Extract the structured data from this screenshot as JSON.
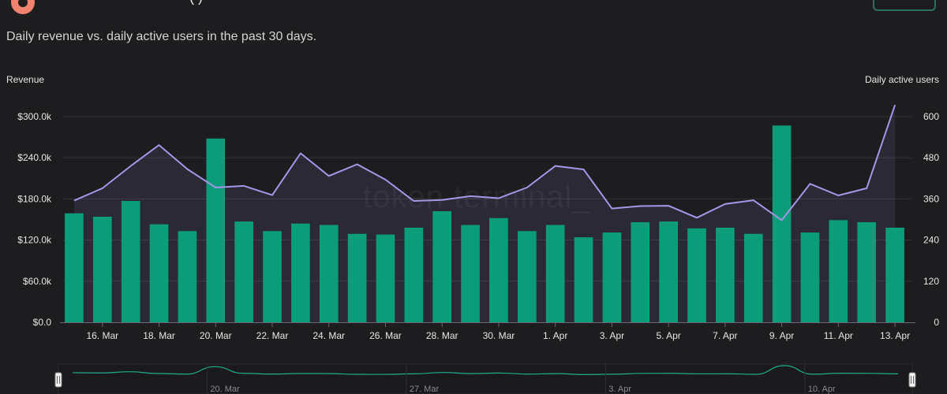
{
  "header": {
    "title_fragment": "(     )"
  },
  "subtitle": "Daily revenue vs. daily active users in the past 30 days.",
  "watermark": "token terminal_",
  "colors": {
    "bar": "#0b9c7a",
    "line": "#a796e8",
    "area": "rgba(150,130,220,0.12)",
    "background": "#1d1d1f",
    "grid": "#333336",
    "navigator_line": "#1fae8c"
  },
  "chart_data": {
    "type": "bar",
    "title": "",
    "left_axis_label": "Revenue",
    "right_axis_label": "Daily active users",
    "left_ticks": [
      "$0.0",
      "$60.0k",
      "$120.0k",
      "$180.0k",
      "$240.0k",
      "$300.0k"
    ],
    "left_tick_values": [
      0,
      60000,
      120000,
      180000,
      240000,
      300000
    ],
    "right_ticks": [
      "0",
      "120",
      "240",
      "360",
      "480",
      "600"
    ],
    "right_tick_values": [
      0,
      120,
      240,
      360,
      480,
      600
    ],
    "ylim_left": [
      0,
      300000
    ],
    "ylim_right": [
      0,
      600
    ],
    "x_tick_labels": [
      "16. Mar",
      "18. Mar",
      "20. Mar",
      "22. Mar",
      "24. Mar",
      "26. Mar",
      "28. Mar",
      "30. Mar",
      "1. Apr",
      "3. Apr",
      "5. Apr",
      "7. Apr",
      "9. Apr",
      "11. Apr",
      "13. Apr"
    ],
    "x_tick_dates": [
      "2024-03-16",
      "2024-03-18",
      "2024-03-20",
      "2024-03-22",
      "2024-03-24",
      "2024-03-26",
      "2024-03-28",
      "2024-03-30",
      "2024-04-01",
      "2024-04-03",
      "2024-04-05",
      "2024-04-07",
      "2024-04-09",
      "2024-04-11",
      "2024-04-13"
    ],
    "x": [
      "2024-03-15",
      "2024-03-16",
      "2024-03-17",
      "2024-03-18",
      "2024-03-19",
      "2024-03-20",
      "2024-03-21",
      "2024-03-22",
      "2024-03-23",
      "2024-03-24",
      "2024-03-25",
      "2024-03-26",
      "2024-03-27",
      "2024-03-28",
      "2024-03-29",
      "2024-03-30",
      "2024-03-31",
      "2024-04-01",
      "2024-04-02",
      "2024-04-03",
      "2024-04-04",
      "2024-04-05",
      "2024-04-06",
      "2024-04-07",
      "2024-04-08",
      "2024-04-09",
      "2024-04-10",
      "2024-04-11",
      "2024-04-12",
      "2024-04-13"
    ],
    "series": [
      {
        "name": "Revenue",
        "type": "bar",
        "axis": "left",
        "values": [
          159000,
          154000,
          177000,
          143000,
          133000,
          268000,
          147000,
          133000,
          144000,
          142000,
          129000,
          128000,
          138000,
          162000,
          142000,
          152000,
          133000,
          142000,
          124000,
          131000,
          146000,
          147000,
          137000,
          138000,
          129000,
          287000,
          131000,
          149000,
          146000,
          138000
        ]
      },
      {
        "name": "Daily active users",
        "type": "line",
        "axis": "right",
        "values": [
          355,
          391,
          456,
          517,
          447,
          393,
          398,
          371,
          493,
          427,
          461,
          416,
          354,
          357,
          368,
          362,
          393,
          456,
          446,
          332,
          339,
          340,
          305,
          345,
          356,
          298,
          404,
          370,
          391,
          634
        ]
      }
    ],
    "grid": true,
    "legend": "none",
    "navigator": {
      "labels": [
        "20. Mar",
        "27. Mar",
        "3. Apr",
        "10. Apr"
      ],
      "label_dates": [
        "2024-03-20",
        "2024-03-27",
        "2024-04-03",
        "2024-04-10"
      ]
    }
  }
}
